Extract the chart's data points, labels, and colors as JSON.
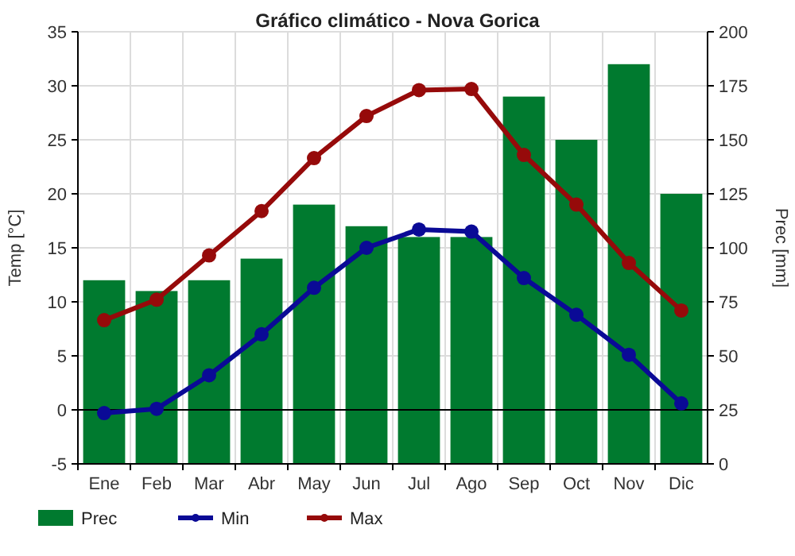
{
  "chart_data": {
    "type": "bar",
    "title": "Gráfico climático - Nova Gorica",
    "ylabel": "Temp [°C]",
    "y2label": "Prec [mm]",
    "categories": [
      "Ene",
      "Feb",
      "Mar",
      "Abr",
      "May",
      "Jun",
      "Jul",
      "Ago",
      "Sep",
      "Oct",
      "Nov",
      "Dic"
    ],
    "series": [
      {
        "name": "Prec",
        "axis": "y2",
        "color": "#007a2f",
        "values": [
          85,
          80,
          85,
          95,
          120,
          110,
          105,
          105,
          170,
          150,
          185,
          125
        ]
      },
      {
        "name": "Min",
        "type": "line",
        "color": "#0a0a96",
        "values": [
          -0.3,
          0.1,
          3.2,
          7.0,
          11.3,
          15.0,
          16.7,
          16.5,
          12.2,
          8.8,
          5.1,
          0.6
        ]
      },
      {
        "name": "Max",
        "type": "line",
        "color": "#960a0a",
        "values": [
          8.3,
          10.2,
          14.3,
          18.4,
          23.3,
          27.2,
          29.6,
          29.7,
          23.6,
          19.0,
          13.6,
          9.2
        ]
      }
    ],
    "ylim": [
      -5,
      35
    ],
    "yticks": [
      -5,
      0,
      5,
      10,
      15,
      20,
      25,
      30,
      35
    ],
    "y2lim": [
      0,
      200
    ],
    "y2ticks": [
      0,
      25,
      50,
      75,
      100,
      125,
      150,
      175,
      200
    ],
    "ref_lines": [
      {
        "axis": "y",
        "value": 0,
        "color": "#000000"
      }
    ],
    "grid": true,
    "legend": "bottom",
    "marker": "circle",
    "line_style": "solid"
  }
}
